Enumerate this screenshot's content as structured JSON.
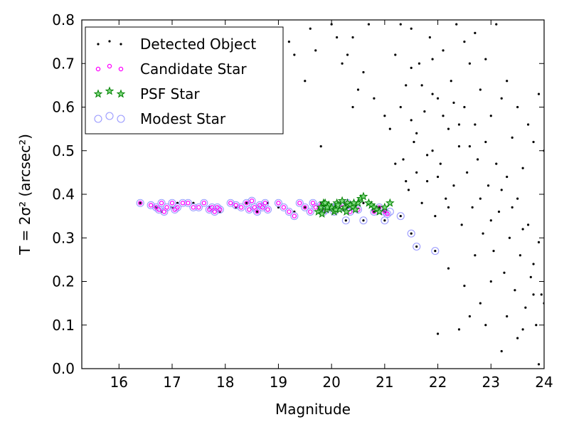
{
  "chart_data": {
    "type": "scatter",
    "xlabel": "Magnitude",
    "ylabel": "T = 2σ² (arcsec²)",
    "xlim": [
      15.3,
      24
    ],
    "ylim": [
      0.0,
      0.8
    ],
    "x_ticks": [
      "16",
      "17",
      "18",
      "19",
      "20",
      "21",
      "22",
      "23",
      "24"
    ],
    "y_ticks": [
      "0.0",
      "0.1",
      "0.2",
      "0.3",
      "0.4",
      "0.5",
      "0.6",
      "0.7",
      "0.8"
    ],
    "legend_position": "top-left",
    "grid": false,
    "series": [
      {
        "name": "Detected Object",
        "marker": "dot",
        "color": "#000000",
        "points": [
          [
            16.4,
            0.38
          ],
          [
            16.7,
            0.37
          ],
          [
            16.8,
            0.36
          ],
          [
            17.0,
            0.37
          ],
          [
            17.1,
            0.38
          ],
          [
            17.4,
            0.38
          ],
          [
            17.7,
            0.37
          ],
          [
            17.9,
            0.36
          ],
          [
            18.2,
            0.37
          ],
          [
            18.4,
            0.38
          ],
          [
            18.6,
            0.36
          ],
          [
            18.8,
            0.38
          ],
          [
            19.0,
            0.37
          ],
          [
            19.3,
            0.36
          ],
          [
            19.5,
            0.37
          ],
          [
            19.8,
            0.38
          ],
          [
            20.0,
            0.37
          ],
          [
            20.3,
            0.37
          ],
          [
            20.6,
            0.38
          ],
          [
            20.8,
            0.36
          ],
          [
            20.9,
            0.37
          ],
          [
            21.0,
            0.36
          ],
          [
            20.27,
            0.34
          ],
          [
            20.6,
            0.34
          ],
          [
            21.0,
            0.34
          ],
          [
            21.3,
            0.35
          ],
          [
            21.5,
            0.31
          ],
          [
            21.6,
            0.28
          ],
          [
            21.95,
            0.27
          ],
          [
            19.2,
            0.75
          ],
          [
            19.3,
            0.72
          ],
          [
            19.6,
            0.78
          ],
          [
            19.7,
            0.73
          ],
          [
            19.5,
            0.66
          ],
          [
            19.8,
            0.51
          ],
          [
            20.0,
            0.79
          ],
          [
            20.1,
            0.76
          ],
          [
            20.2,
            0.7
          ],
          [
            20.3,
            0.72
          ],
          [
            20.4,
            0.76
          ],
          [
            20.5,
            0.64
          ],
          [
            20.6,
            0.68
          ],
          [
            20.7,
            0.79
          ],
          [
            20.4,
            0.6
          ],
          [
            20.8,
            0.62
          ],
          [
            21.0,
            0.58
          ],
          [
            21.1,
            0.55
          ],
          [
            21.2,
            0.72
          ],
          [
            21.3,
            0.79
          ],
          [
            21.35,
            0.48
          ],
          [
            21.4,
            0.65
          ],
          [
            21.45,
            0.41
          ],
          [
            21.5,
            0.78
          ],
          [
            21.55,
            0.52
          ],
          [
            21.6,
            0.45
          ],
          [
            21.65,
            0.7
          ],
          [
            21.7,
            0.38
          ],
          [
            21.75,
            0.59
          ],
          [
            21.8,
            0.43
          ],
          [
            21.85,
            0.76
          ],
          [
            21.9,
            0.5
          ],
          [
            21.95,
            0.35
          ],
          [
            22.0,
            0.62
          ],
          [
            22.05,
            0.47
          ],
          [
            22.1,
            0.73
          ],
          [
            22.15,
            0.39
          ],
          [
            22.2,
            0.55
          ],
          [
            22.25,
            0.66
          ],
          [
            22.3,
            0.42
          ],
          [
            22.35,
            0.79
          ],
          [
            22.4,
            0.51
          ],
          [
            22.45,
            0.33
          ],
          [
            22.5,
            0.6
          ],
          [
            22.55,
            0.45
          ],
          [
            22.6,
            0.7
          ],
          [
            22.65,
            0.37
          ],
          [
            22.7,
            0.56
          ],
          [
            22.75,
            0.48
          ],
          [
            22.8,
            0.64
          ],
          [
            22.85,
            0.31
          ],
          [
            22.9,
            0.52
          ],
          [
            22.95,
            0.42
          ],
          [
            23.0,
            0.58
          ],
          [
            23.05,
            0.27
          ],
          [
            23.1,
            0.47
          ],
          [
            23.15,
            0.36
          ],
          [
            23.2,
            0.62
          ],
          [
            23.25,
            0.22
          ],
          [
            23.3,
            0.44
          ],
          [
            23.35,
            0.3
          ],
          [
            23.4,
            0.53
          ],
          [
            23.45,
            0.18
          ],
          [
            23.5,
            0.39
          ],
          [
            23.55,
            0.26
          ],
          [
            23.6,
            0.46
          ],
          [
            23.65,
            0.14
          ],
          [
            23.7,
            0.33
          ],
          [
            23.75,
            0.21
          ],
          [
            23.8,
            0.52
          ],
          [
            23.85,
            0.1
          ],
          [
            23.9,
            0.29
          ],
          [
            23.95,
            0.17
          ],
          [
            22.0,
            0.08
          ],
          [
            22.4,
            0.09
          ],
          [
            22.6,
            0.12
          ],
          [
            22.9,
            0.1
          ],
          [
            23.2,
            0.04
          ],
          [
            23.5,
            0.07
          ],
          [
            23.9,
            0.01
          ],
          [
            22.2,
            0.23
          ],
          [
            22.5,
            0.19
          ],
          [
            22.7,
            0.26
          ],
          [
            22.8,
            0.15
          ],
          [
            23.0,
            0.2
          ],
          [
            23.3,
            0.12
          ],
          [
            23.6,
            0.09
          ],
          [
            23.8,
            0.17
          ],
          [
            21.2,
            0.47
          ],
          [
            21.3,
            0.6
          ],
          [
            21.5,
            0.69
          ],
          [
            21.7,
            0.65
          ],
          [
            21.9,
            0.71
          ],
          [
            22.1,
            0.58
          ],
          [
            22.3,
            0.61
          ],
          [
            22.5,
            0.75
          ],
          [
            22.7,
            0.77
          ],
          [
            22.9,
            0.71
          ],
          [
            23.1,
            0.79
          ],
          [
            23.3,
            0.66
          ],
          [
            23.5,
            0.6
          ],
          [
            23.7,
            0.56
          ],
          [
            23.9,
            0.63
          ],
          [
            24.0,
            0.5
          ],
          [
            21.6,
            0.54
          ],
          [
            21.8,
            0.49
          ],
          [
            22.0,
            0.44
          ],
          [
            22.2,
            0.37
          ],
          [
            22.4,
            0.56
          ],
          [
            22.6,
            0.51
          ],
          [
            22.8,
            0.39
          ],
          [
            23.0,
            0.34
          ],
          [
            23.2,
            0.41
          ],
          [
            23.4,
            0.37
          ],
          [
            23.6,
            0.32
          ],
          [
            23.8,
            0.24
          ],
          [
            24.0,
            0.15
          ],
          [
            21.4,
            0.43
          ],
          [
            21.5,
            0.57
          ],
          [
            21.9,
            0.63
          ]
        ]
      },
      {
        "name": "Candidate Star",
        "marker": "circle",
        "color": "#ff00ff",
        "points": [
          [
            16.4,
            0.38
          ],
          [
            16.6,
            0.375
          ],
          [
            16.7,
            0.37
          ],
          [
            16.75,
            0.365
          ],
          [
            16.8,
            0.38
          ],
          [
            16.85,
            0.36
          ],
          [
            16.9,
            0.37
          ],
          [
            17.0,
            0.38
          ],
          [
            17.05,
            0.365
          ],
          [
            17.1,
            0.37
          ],
          [
            17.2,
            0.38
          ],
          [
            17.3,
            0.38
          ],
          [
            17.4,
            0.37
          ],
          [
            17.5,
            0.37
          ],
          [
            17.6,
            0.38
          ],
          [
            17.7,
            0.365
          ],
          [
            17.75,
            0.37
          ],
          [
            17.8,
            0.36
          ],
          [
            17.85,
            0.37
          ],
          [
            17.9,
            0.365
          ],
          [
            18.1,
            0.38
          ],
          [
            18.2,
            0.375
          ],
          [
            18.3,
            0.37
          ],
          [
            18.4,
            0.38
          ],
          [
            18.45,
            0.365
          ],
          [
            18.5,
            0.385
          ],
          [
            18.55,
            0.37
          ],
          [
            18.6,
            0.36
          ],
          [
            18.65,
            0.375
          ],
          [
            18.7,
            0.37
          ],
          [
            18.75,
            0.38
          ],
          [
            18.8,
            0.365
          ],
          [
            19.0,
            0.38
          ],
          [
            19.1,
            0.37
          ],
          [
            19.2,
            0.36
          ],
          [
            19.3,
            0.35
          ],
          [
            19.4,
            0.38
          ],
          [
            19.5,
            0.37
          ],
          [
            19.6,
            0.36
          ],
          [
            19.65,
            0.38
          ],
          [
            19.7,
            0.37
          ],
          [
            19.8,
            0.375
          ],
          [
            19.85,
            0.36
          ],
          [
            19.9,
            0.365
          ],
          [
            20.0,
            0.37
          ],
          [
            20.05,
            0.36
          ],
          [
            20.1,
            0.375
          ],
          [
            20.2,
            0.37
          ],
          [
            20.3,
            0.38
          ],
          [
            20.35,
            0.36
          ],
          [
            20.4,
            0.37
          ],
          [
            20.5,
            0.365
          ],
          [
            20.8,
            0.36
          ],
          [
            20.9,
            0.37
          ],
          [
            21.0,
            0.36
          ],
          [
            21.05,
            0.355
          ]
        ]
      },
      {
        "name": "PSF Star",
        "marker": "star",
        "color": "#008000",
        "points": [
          [
            19.75,
            0.36
          ],
          [
            19.8,
            0.37
          ],
          [
            19.85,
            0.38
          ],
          [
            19.9,
            0.365
          ],
          [
            19.95,
            0.375
          ],
          [
            20.0,
            0.37
          ],
          [
            20.05,
            0.36
          ],
          [
            20.1,
            0.38
          ],
          [
            20.15,
            0.365
          ],
          [
            20.2,
            0.385
          ],
          [
            20.25,
            0.37
          ],
          [
            20.3,
            0.38
          ],
          [
            20.35,
            0.375
          ],
          [
            20.4,
            0.37
          ],
          [
            20.45,
            0.365
          ],
          [
            20.5,
            0.38
          ],
          [
            20.55,
            0.39
          ],
          [
            20.6,
            0.395
          ],
          [
            20.7,
            0.38
          ],
          [
            20.75,
            0.375
          ],
          [
            20.8,
            0.37
          ],
          [
            20.85,
            0.365
          ],
          [
            20.9,
            0.36
          ],
          [
            21.0,
            0.37
          ],
          [
            21.1,
            0.38
          ],
          [
            19.82,
            0.355
          ],
          [
            19.88,
            0.38
          ],
          [
            19.92,
            0.37
          ],
          [
            20.08,
            0.365
          ],
          [
            20.12,
            0.375
          ],
          [
            20.28,
            0.36
          ],
          [
            20.42,
            0.38
          ]
        ]
      },
      {
        "name": "Modest Star",
        "marker": "open-circle",
        "color": "#9999ff",
        "points": [
          [
            16.4,
            0.38
          ],
          [
            16.6,
            0.375
          ],
          [
            16.7,
            0.37
          ],
          [
            16.75,
            0.365
          ],
          [
            16.8,
            0.38
          ],
          [
            16.85,
            0.36
          ],
          [
            16.9,
            0.37
          ],
          [
            17.0,
            0.38
          ],
          [
            17.05,
            0.365
          ],
          [
            17.1,
            0.37
          ],
          [
            17.2,
            0.38
          ],
          [
            17.3,
            0.38
          ],
          [
            17.4,
            0.37
          ],
          [
            17.5,
            0.37
          ],
          [
            17.6,
            0.38
          ],
          [
            17.7,
            0.365
          ],
          [
            17.75,
            0.37
          ],
          [
            17.8,
            0.36
          ],
          [
            17.85,
            0.37
          ],
          [
            17.9,
            0.365
          ],
          [
            18.1,
            0.38
          ],
          [
            18.2,
            0.375
          ],
          [
            18.3,
            0.37
          ],
          [
            18.4,
            0.38
          ],
          [
            18.45,
            0.365
          ],
          [
            18.5,
            0.385
          ],
          [
            18.55,
            0.37
          ],
          [
            18.6,
            0.36
          ],
          [
            18.65,
            0.375
          ],
          [
            18.7,
            0.37
          ],
          [
            18.75,
            0.38
          ],
          [
            18.8,
            0.365
          ],
          [
            19.0,
            0.38
          ],
          [
            19.1,
            0.37
          ],
          [
            19.2,
            0.36
          ],
          [
            19.3,
            0.35
          ],
          [
            19.4,
            0.38
          ],
          [
            19.5,
            0.37
          ],
          [
            19.6,
            0.36
          ],
          [
            19.65,
            0.38
          ],
          [
            19.7,
            0.37
          ],
          [
            19.8,
            0.375
          ],
          [
            19.85,
            0.36
          ],
          [
            19.9,
            0.365
          ],
          [
            20.0,
            0.37
          ],
          [
            20.05,
            0.36
          ],
          [
            20.1,
            0.375
          ],
          [
            20.2,
            0.37
          ],
          [
            20.3,
            0.38
          ],
          [
            20.35,
            0.36
          ],
          [
            20.4,
            0.37
          ],
          [
            20.5,
            0.365
          ],
          [
            20.8,
            0.36
          ],
          [
            20.9,
            0.37
          ],
          [
            21.0,
            0.36
          ],
          [
            21.05,
            0.355
          ],
          [
            20.27,
            0.34
          ],
          [
            20.6,
            0.34
          ],
          [
            21.0,
            0.34
          ],
          [
            21.1,
            0.36
          ],
          [
            21.3,
            0.35
          ],
          [
            21.5,
            0.31
          ],
          [
            21.6,
            0.28
          ],
          [
            21.95,
            0.27
          ]
        ]
      }
    ]
  }
}
